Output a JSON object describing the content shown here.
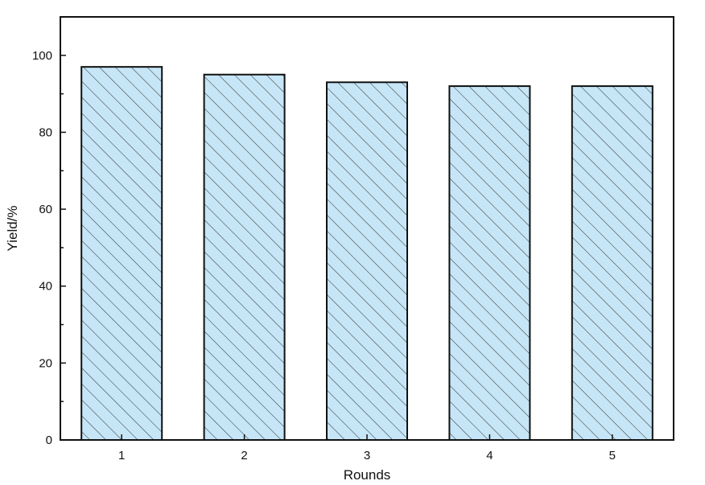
{
  "chart_data": {
    "type": "bar",
    "title": "",
    "xlabel": "Rounds",
    "ylabel": "Yield/%",
    "categories": [
      "1",
      "2",
      "3",
      "4",
      "5"
    ],
    "values": [
      97,
      95,
      93,
      92,
      92
    ],
    "ylim": [
      0,
      110
    ],
    "yticks": [
      0,
      20,
      40,
      60,
      80,
      100
    ],
    "y_minor_tick_step": 10,
    "grid": false,
    "legend": "none",
    "colors": {
      "bar_fill": "#c6e6f7",
      "bar_stroke": "#111111",
      "hatch": "#3a3a3a",
      "axis": "#111111"
    },
    "bar_pattern": "diagonal-hatch"
  }
}
